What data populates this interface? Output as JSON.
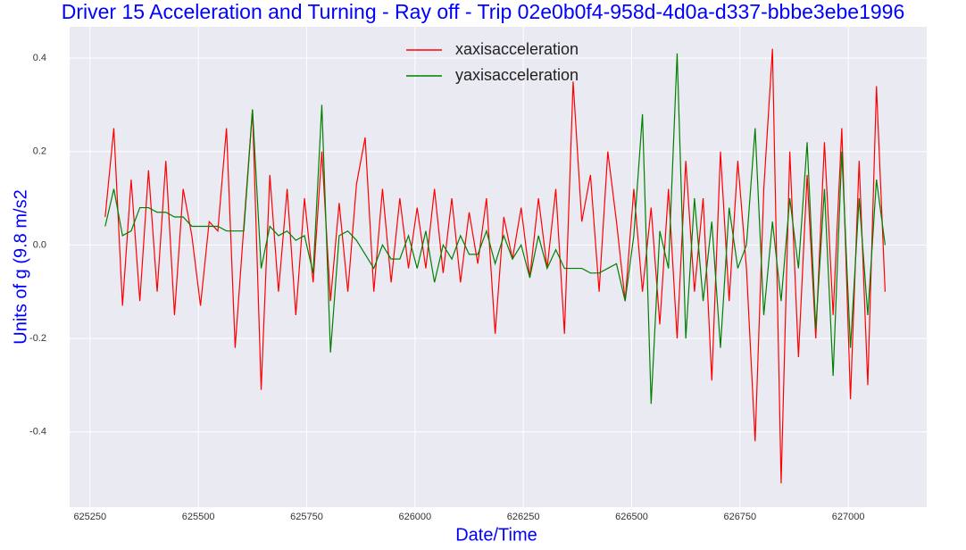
{
  "chart_data": {
    "type": "line",
    "title": "Driver 15 Acceleration and Turning - Ray off - Trip 02e0b0f4-958d-4d0a-d337-bbbe3ebe1996",
    "x_label": "Date/Time",
    "y_label": "Units of g (9.8 m/s2",
    "xlim": [
      625203,
      627181
    ],
    "ylim": [
      -0.561,
      0.467
    ],
    "xticks": [
      625250,
      625500,
      625750,
      626000,
      626250,
      626500,
      626750,
      627000
    ],
    "yticks": [
      -0.4,
      -0.2,
      {
        "value": 0,
        "label": "0.0"
      },
      0.2,
      0.4
    ],
    "grid": true,
    "legend": "upper center",
    "x": [
      625285,
      625305,
      625325,
      625345,
      625365,
      625385,
      625405,
      625425,
      625445,
      625465,
      625485,
      625505,
      625525,
      625545,
      625565,
      625585,
      625605,
      625625,
      625645,
      625665,
      625685,
      625705,
      625725,
      625745,
      625765,
      625785,
      625805,
      625825,
      625845,
      625865,
      625885,
      625905,
      625925,
      625945,
      625965,
      625985,
      626005,
      626025,
      626045,
      626065,
      626085,
      626105,
      626125,
      626145,
      626165,
      626185,
      626205,
      626225,
      626245,
      626265,
      626285,
      626305,
      626325,
      626345,
      626365,
      626385,
      626405,
      626425,
      626445,
      626465,
      626485,
      626505,
      626525,
      626545,
      626565,
      626585,
      626605,
      626625,
      626645,
      626665,
      626685,
      626705,
      626725,
      626745,
      626765,
      626785,
      626805,
      626825,
      626845,
      626865,
      626885,
      626905,
      626925,
      626945,
      626965,
      626985,
      627005,
      627025,
      627045,
      627065,
      627085
    ],
    "series": [
      {
        "name": "xaxisacceleration",
        "color": "#ff0000",
        "values": [
          0.06,
          0.25,
          -0.13,
          0.14,
          -0.12,
          0.16,
          -0.1,
          0.18,
          -0.15,
          0.12,
          0.02,
          -0.13,
          0.05,
          0.03,
          0.25,
          -0.22,
          0.04,
          0.29,
          -0.31,
          0.15,
          -0.1,
          0.12,
          -0.15,
          0.1,
          -0.08,
          0.2,
          -0.12,
          0.09,
          -0.1,
          0.13,
          0.23,
          -0.1,
          0.12,
          -0.08,
          0.1,
          -0.05,
          0.08,
          -0.05,
          0.12,
          -0.06,
          0.1,
          -0.08,
          0.07,
          -0.04,
          0.1,
          -0.19,
          0.06,
          -0.03,
          0.08,
          -0.07,
          0.1,
          -0.05,
          0.12,
          -0.19,
          0.35,
          0.05,
          0.15,
          -0.1,
          0.2,
          0.05,
          -0.12,
          0.12,
          -0.1,
          0.08,
          -0.17,
          0.12,
          -0.2,
          0.18,
          -0.1,
          0.1,
          -0.29,
          0.2,
          -0.12,
          0.18,
          -0.05,
          -0.42,
          0.12,
          0.42,
          -0.51,
          0.2,
          -0.24,
          0.15,
          -0.2,
          0.22,
          -0.15,
          0.25,
          -0.33,
          0.18,
          -0.3,
          0.34,
          -0.1
        ]
      },
      {
        "name": "yaxisacceleration",
        "color": "#008000",
        "values": [
          0.04,
          0.12,
          0.02,
          0.03,
          0.08,
          0.08,
          0.07,
          0.07,
          0.06,
          0.06,
          0.04,
          0.04,
          0.04,
          0.04,
          0.03,
          0.03,
          0.03,
          0.29,
          -0.05,
          0.04,
          0.02,
          0.03,
          0.01,
          0.02,
          -0.06,
          0.3,
          -0.23,
          0.02,
          0.03,
          0.01,
          -0.02,
          -0.05,
          0.0,
          -0.03,
          -0.03,
          0.02,
          -0.05,
          0.03,
          -0.08,
          0.0,
          -0.03,
          0.02,
          -0.02,
          -0.02,
          0.03,
          -0.04,
          0.02,
          -0.03,
          0.0,
          -0.07,
          0.02,
          -0.05,
          -0.01,
          -0.05,
          -0.05,
          -0.05,
          -0.06,
          -0.06,
          -0.05,
          -0.04,
          -0.12,
          0.02,
          0.28,
          -0.34,
          0.03,
          -0.05,
          0.41,
          -0.2,
          0.1,
          -0.12,
          0.05,
          -0.22,
          0.08,
          -0.05,
          0.0,
          0.25,
          -0.15,
          0.05,
          -0.12,
          0.1,
          -0.05,
          0.22,
          -0.18,
          0.12,
          -0.28,
          0.2,
          -0.22,
          0.1,
          -0.15,
          0.14,
          0.0
        ]
      }
    ]
  }
}
